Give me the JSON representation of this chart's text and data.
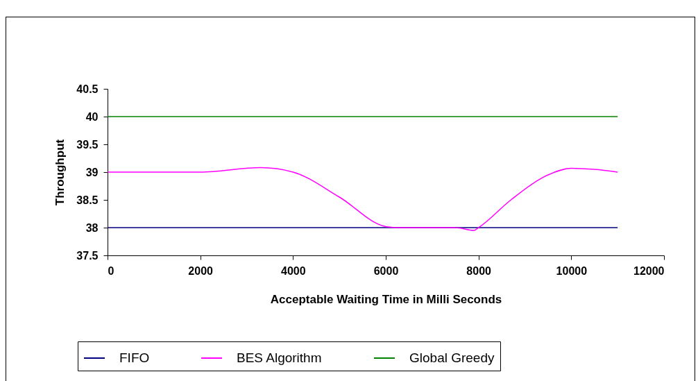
{
  "chart_data": {
    "type": "line",
    "xlabel": "Acceptable Waiting Time in Milli Seconds",
    "ylabel": "Throughput",
    "xlim": [
      0,
      12000
    ],
    "xticks": [
      0,
      2000,
      4000,
      6000,
      8000,
      10000,
      12000
    ],
    "ylim": [
      37.5,
      40.5
    ],
    "yticks": [
      37.5,
      38,
      38.5,
      39,
      39.5,
      40,
      40.5
    ],
    "grid": false,
    "legend": "bottom",
    "marker": "none",
    "line_style": "solid",
    "series": [
      {
        "name": "FIFO",
        "color": "#000080",
        "x": [
          0,
          11000
        ],
        "values": [
          38,
          38
        ]
      },
      {
        "name": "BES Algorithm",
        "color": "#ff00ff",
        "x": [
          0,
          2000,
          3300,
          4000,
          5000,
          6000,
          6300,
          7500,
          7900,
          8000,
          8700,
          9500,
          10000,
          10500,
          11000
        ],
        "values": [
          39,
          39,
          39.08,
          39,
          38.55,
          38.02,
          38,
          38,
          37.95,
          38,
          38.5,
          38.95,
          39.07,
          39.05,
          39
        ]
      },
      {
        "name": "Global Greedy",
        "color": "#008000",
        "x": [
          0,
          11000
        ],
        "values": [
          40,
          40
        ]
      }
    ]
  }
}
